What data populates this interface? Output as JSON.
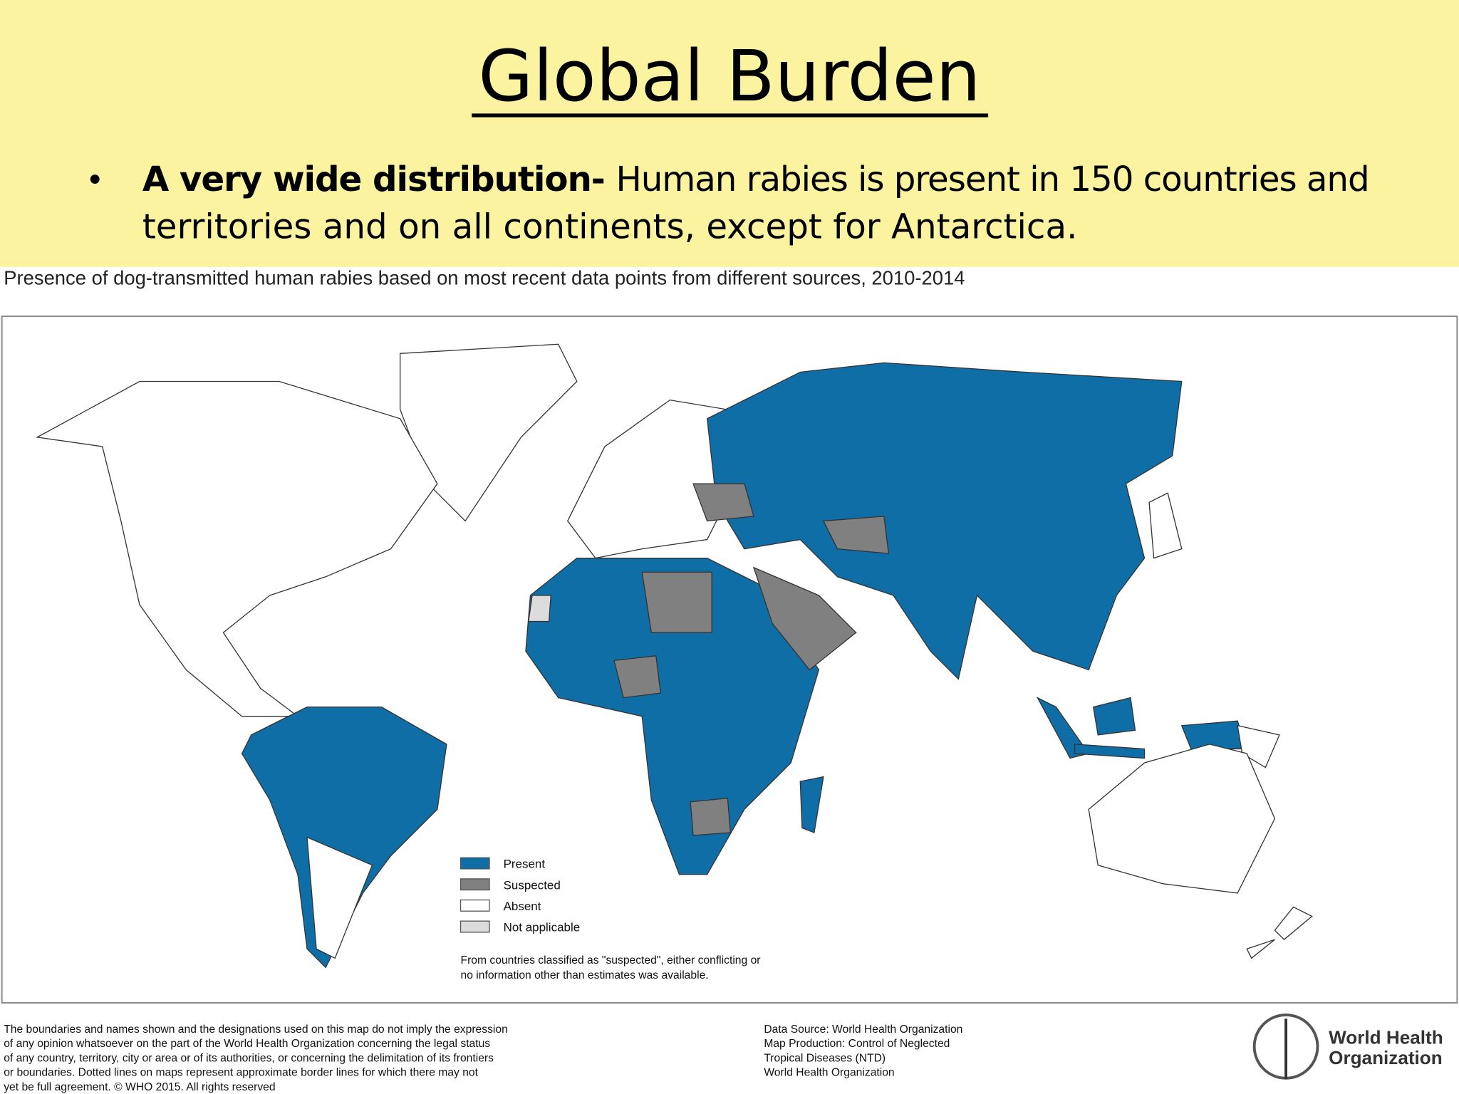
{
  "title": "Global Burden",
  "bullet": {
    "bold": "A very wide distribution-",
    "lines": [
      "Human rabies is present in 150 countries and",
      "territories and on all continents, except for Antarctica."
    ]
  },
  "map": {
    "caption": "Presence of dog-transmitted human rabies based on most recent data points from different sources, 2010-2014",
    "legend": [
      {
        "label": "Present",
        "color": "#0f6ea6"
      },
      {
        "label": "Suspected",
        "color": "#808080"
      },
      {
        "label": "Absent",
        "color": "#ffffff"
      },
      {
        "label": "Not applicable",
        "color": "#dcdcdc"
      }
    ],
    "note": [
      "From countries classified as \"suspected\", either conflicting or",
      "no information other than estimates was available."
    ]
  },
  "footer": {
    "disclaimer": [
      "The boundaries and names shown and the designations used on this map do not imply the expression",
      "of any opinion whatsoever on the part of the World Health Organization concerning the legal status",
      "of any country, territory, city or area or of its authorities, or concerning the delimitation of its frontiers",
      "or boundaries. Dotted lines on maps represent approximate border lines for which there may not",
      "yet be full agreement. © WHO 2015. All rights reserved"
    ],
    "data_source": [
      "Data Source: World Health Organization",
      "Map Production: Control of Neglected",
      "Tropical Diseases (NTD)",
      "World Health Organization"
    ],
    "organization": [
      "World Health",
      "Organization"
    ]
  }
}
